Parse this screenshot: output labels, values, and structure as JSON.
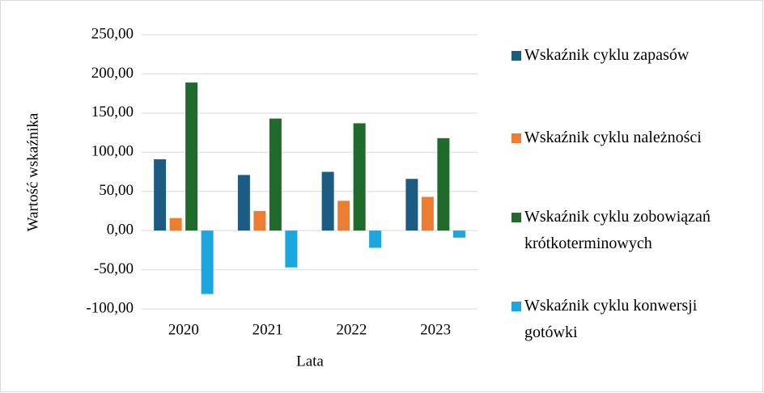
{
  "chart_data": {
    "type": "bar",
    "categories": [
      "2020",
      "2021",
      "2022",
      "2023"
    ],
    "series": [
      {
        "name": "Wskaźnik cyklu zapasów",
        "color": "#1c5c82",
        "values": [
          91,
          71,
          75,
          66
        ]
      },
      {
        "name": "Wskaźnik cyklu należności",
        "color": "#ed7d31",
        "values": [
          16,
          25,
          38,
          43
        ]
      },
      {
        "name": "Wskaźnik cyklu zobowiązań krótkoterminowych",
        "color": "#1e6b2c",
        "values": [
          189,
          143,
          137,
          118
        ]
      },
      {
        "name": "Wskaźnik cyklu konwersji gotówki",
        "color": "#1aa6df",
        "values": [
          -81,
          -47,
          -22,
          -9
        ]
      }
    ],
    "x_label": "Lata",
    "y_label": "Wartość wskaźnika",
    "ylim": [
      -100,
      250
    ],
    "yticks": [
      {
        "value": -100,
        "label": "-100,00"
      },
      {
        "value": -50,
        "label": "-50,00"
      },
      {
        "value": 0,
        "label": "0,00"
      },
      {
        "value": 50,
        "label": "50,00"
      },
      {
        "value": 100,
        "label": "100,00"
      },
      {
        "value": 150,
        "label": "150,00"
      },
      {
        "value": 200,
        "label": "200,00"
      },
      {
        "value": 250,
        "label": "250,00"
      }
    ],
    "grid": true,
    "legend": "right"
  }
}
